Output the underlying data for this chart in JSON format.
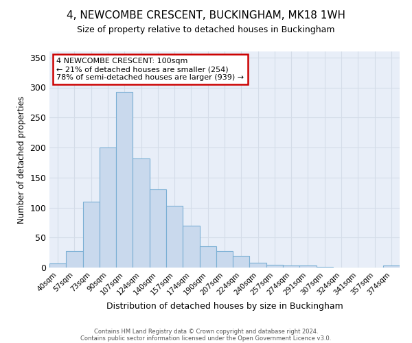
{
  "title": "4, NEWCOMBE CRESCENT, BUCKINGHAM, MK18 1WH",
  "subtitle": "Size of property relative to detached houses in Buckingham",
  "xlabel": "Distribution of detached houses by size in Buckingham",
  "ylabel": "Number of detached properties",
  "categories": [
    "40sqm",
    "57sqm",
    "73sqm",
    "90sqm",
    "107sqm",
    "124sqm",
    "140sqm",
    "157sqm",
    "174sqm",
    "190sqm",
    "207sqm",
    "224sqm",
    "240sqm",
    "257sqm",
    "274sqm",
    "291sqm",
    "307sqm",
    "324sqm",
    "341sqm",
    "357sqm",
    "374sqm"
  ],
  "values": [
    7,
    28,
    110,
    200,
    293,
    182,
    130,
    103,
    70,
    35,
    27,
    20,
    8,
    5,
    3,
    3,
    1,
    0,
    0,
    0,
    3
  ],
  "bar_color": "#c9d9ed",
  "bar_edge_color": "#7aafd4",
  "property_label": "4 NEWCOMBE CRESCENT: 100sqm",
  "pct_smaller": "21% of detached houses are smaller (254)",
  "pct_larger": "78% of semi-detached houses are larger (939)",
  "annotation_box_color": "#ffffff",
  "annotation_box_edge_color": "#cc0000",
  "grid_color": "#d4dce8",
  "background_color": "#e8eef8",
  "ylim": [
    0,
    360
  ],
  "yticks": [
    0,
    50,
    100,
    150,
    200,
    250,
    300,
    350
  ],
  "footer1": "Contains HM Land Registry data © Crown copyright and database right 2024.",
  "footer2": "Contains public sector information licensed under the Open Government Licence v3.0."
}
